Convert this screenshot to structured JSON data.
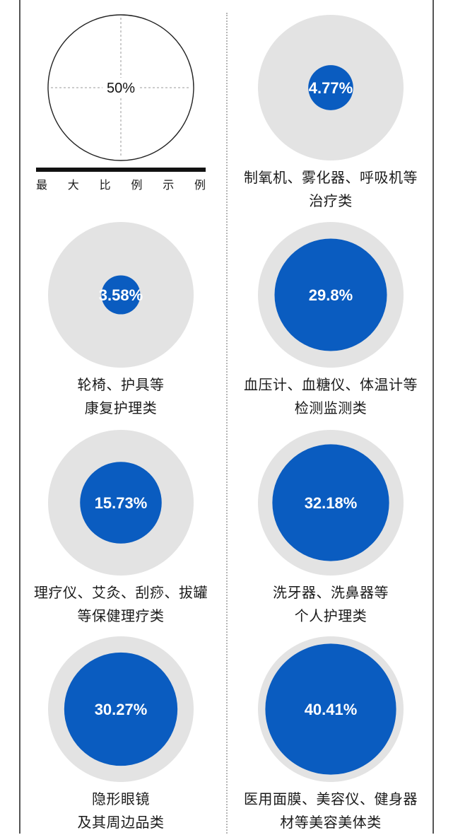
{
  "chart_data": {
    "type": "bubble",
    "reference": {
      "value": 50,
      "label": "50%",
      "caption": "最大比例示例"
    },
    "items": [
      {
        "name_lines": [
          "制氧机、雾化器、呼吸机等",
          "治疗类"
        ],
        "value": 4.77,
        "label": "4.77%"
      },
      {
        "name_lines": [
          "轮椅、护具等",
          "康复护理类"
        ],
        "value": 3.58,
        "label": "3.58%"
      },
      {
        "name_lines": [
          "血压计、血糖仪、体温计等",
          "检测监测类"
        ],
        "value": 29.8,
        "label": "29.8%"
      },
      {
        "name_lines": [
          "理疗仪、艾灸、刮痧、拔罐",
          "等保健理疗类"
        ],
        "value": 15.73,
        "label": "15.73%"
      },
      {
        "name_lines": [
          "洗牙器、洗鼻器等",
          "个人护理类"
        ],
        "value": 32.18,
        "label": "32.18%"
      },
      {
        "name_lines": [
          "隐形眼镜",
          "及其周边品类"
        ],
        "value": 30.27,
        "label": "30.27%"
      },
      {
        "name_lines": [
          "医用面膜、美容仪、健身器",
          "材等美容美体类"
        ],
        "value": 40.41,
        "label": "40.41%"
      }
    ]
  },
  "colors": {
    "bubble": "#0a5cc0",
    "background_circle": "#e3e3e3",
    "text_on_bubble": "#ffffff",
    "frame": "#555555"
  }
}
